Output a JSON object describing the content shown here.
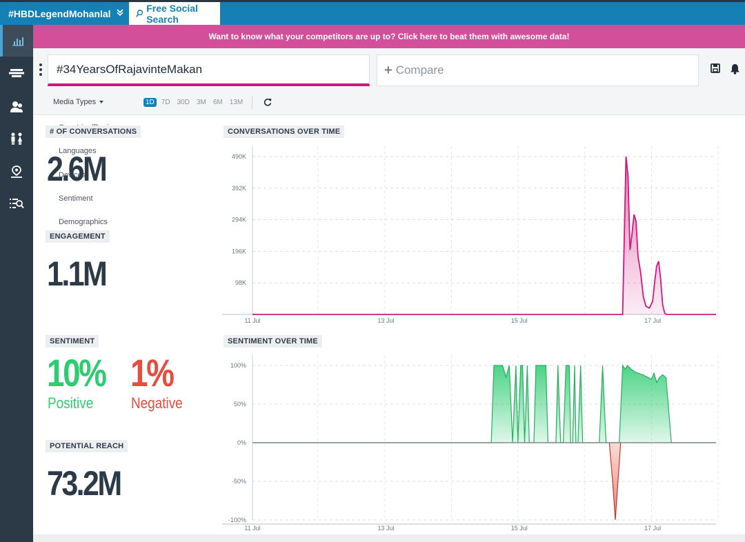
{
  "tabs": {
    "active_title": "#HBDLegendMohanlal",
    "free_search": "Free Social Search"
  },
  "banner": {
    "text": "Want to know what your competitors are up to? Click here to beat them with awesome data!"
  },
  "search": {
    "query": "#34YearsOfRajavinteMakan",
    "compare_placeholder": "Compare"
  },
  "filters": {
    "media_types": "Media Types",
    "ranges": [
      "1D",
      "7D",
      "30D",
      "3M",
      "6M",
      "13M"
    ],
    "active_range": "1D",
    "menu_items": [
      "Countries/Regions",
      "Languages",
      "Devices",
      "Sentiment",
      "Demographics"
    ]
  },
  "metrics": {
    "conversations_label": "# OF CONVERSATIONS",
    "conversations_value": "2.6M",
    "engagement_label": "ENGAGEMENT",
    "engagement_value": "1.1M",
    "sentiment_label": "SENTIMENT",
    "positive_value": "10%",
    "positive_label": "Positive",
    "negative_value": "1%",
    "negative_label": "Negative",
    "reach_label": "POTENTIAL REACH",
    "reach_value": "73.2M"
  },
  "colors": {
    "conversations_line": "#d0177d",
    "positive": "#2ecc71",
    "negative": "#e74c3c",
    "accent": "#1580b5"
  },
  "chart_data": [
    {
      "type": "area",
      "title": "CONVERSATIONS OVER TIME",
      "x_ticks": [
        "11 Jul",
        "13 Jul",
        "15 Jul",
        "17 Jul"
      ],
      "y_ticks": [
        "98K",
        "196K",
        "294K",
        "392K",
        "490K"
      ],
      "ylim": [
        0,
        490000
      ],
      "xlim": [
        11.0,
        17.95
      ],
      "grid": true,
      "x": [
        11.0,
        16.4,
        16.55,
        16.6,
        16.63,
        16.66,
        16.69,
        16.72,
        16.75,
        16.78,
        16.82,
        16.86,
        16.9,
        16.95,
        17.0,
        17.03,
        17.06,
        17.09,
        17.12,
        17.15,
        17.18,
        17.2,
        17.28,
        17.95
      ],
      "values": [
        0,
        0,
        0,
        490000,
        430000,
        200000,
        250000,
        310000,
        290000,
        180000,
        130000,
        55000,
        25000,
        20000,
        40000,
        100000,
        150000,
        165000,
        110000,
        30000,
        5000,
        0,
        0,
        0
      ]
    },
    {
      "type": "area",
      "title": "SENTIMENT OVER TIME",
      "x_ticks": [
        "11 Jul",
        "13 Jul",
        "15 Jul",
        "17 Jul"
      ],
      "y_ticks": [
        "100%",
        "50%",
        "0%",
        "-50%",
        "-100%"
      ],
      "ylim": [
        -100,
        100
      ],
      "xlim": [
        11.0,
        17.95
      ],
      "grid": true,
      "x": [
        11.0,
        14.58,
        14.62,
        14.75,
        14.8,
        14.85,
        14.9,
        14.95,
        14.98,
        15.02,
        15.05,
        15.08,
        15.12,
        15.15,
        15.18,
        15.22,
        15.25,
        15.28,
        15.4,
        15.43,
        15.55,
        15.58,
        15.62,
        15.66,
        15.7,
        15.73,
        15.75,
        15.77,
        15.8,
        15.83,
        15.85,
        15.88,
        15.92,
        15.95,
        16.2,
        16.25,
        16.3,
        16.35,
        16.4,
        16.45,
        16.5,
        16.55,
        16.59,
        16.62,
        16.68,
        16.73,
        16.78,
        16.85,
        16.92,
        16.98,
        17.02,
        17.06,
        17.1,
        17.15,
        17.2,
        17.28,
        17.95
      ],
      "values": [
        0,
        0,
        100,
        100,
        85,
        100,
        0,
        100,
        0,
        100,
        100,
        0,
        100,
        0,
        0,
        0,
        100,
        100,
        100,
        0,
        0,
        100,
        0,
        0,
        100,
        100,
        100,
        0,
        0,
        100,
        0,
        0,
        100,
        0,
        0,
        100,
        0,
        0,
        0,
        0,
        0,
        100,
        95,
        100,
        95,
        92,
        90,
        88,
        85,
        82,
        90,
        78,
        84,
        88,
        84,
        0,
        0
      ],
      "negative_series": {
        "x": [
          16.35,
          16.4,
          16.44,
          16.48,
          16.52
        ],
        "values": [
          0,
          -50,
          -100,
          -50,
          0
        ]
      }
    }
  ]
}
